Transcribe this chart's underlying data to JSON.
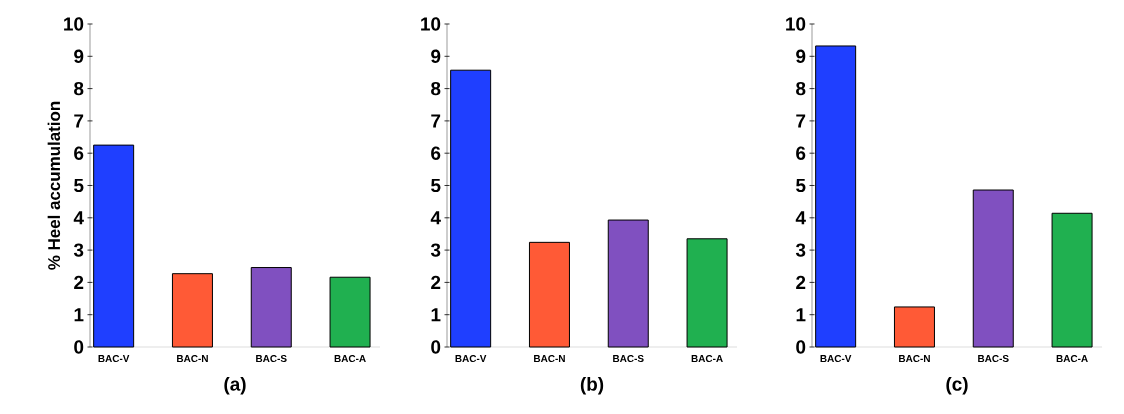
{
  "chart_data": [
    {
      "type": "bar",
      "xlabel": "(a)",
      "ylabel": "% Heel accumulation",
      "categories": [
        "BAC-V",
        "BAC-N",
        "BAC-S",
        "BAC-A"
      ],
      "values": [
        6.25,
        2.27,
        2.46,
        2.16
      ],
      "colors": [
        "#1f3fff",
        "#ff5a36",
        "#8050c0",
        "#20b050"
      ],
      "ylim": [
        0,
        10
      ],
      "yticks": [
        0,
        1,
        2,
        3,
        4,
        5,
        6,
        7,
        8,
        9,
        10
      ]
    },
    {
      "type": "bar",
      "xlabel": "(b)",
      "categories": [
        "BAC-V",
        "BAC-N",
        "BAC-S",
        "BAC-A"
      ],
      "values": [
        8.57,
        3.24,
        3.93,
        3.35
      ],
      "colors": [
        "#1f3fff",
        "#ff5a36",
        "#8050c0",
        "#20b050"
      ],
      "ylim": [
        0,
        10
      ],
      "yticks": [
        0,
        1,
        2,
        3,
        4,
        5,
        6,
        7,
        8,
        9,
        10
      ]
    },
    {
      "type": "bar",
      "xlabel": "(c)",
      "categories": [
        "BAC-V",
        "BAC-N",
        "BAC-S",
        "BAC-A"
      ],
      "values": [
        9.32,
        1.24,
        4.86,
        4.14
      ],
      "colors": [
        "#1f3fff",
        "#ff5a36",
        "#8050c0",
        "#20b050"
      ],
      "ylim": [
        0,
        10
      ],
      "yticks": [
        0,
        1,
        2,
        3,
        4,
        5,
        6,
        7,
        8,
        9,
        10
      ]
    }
  ]
}
